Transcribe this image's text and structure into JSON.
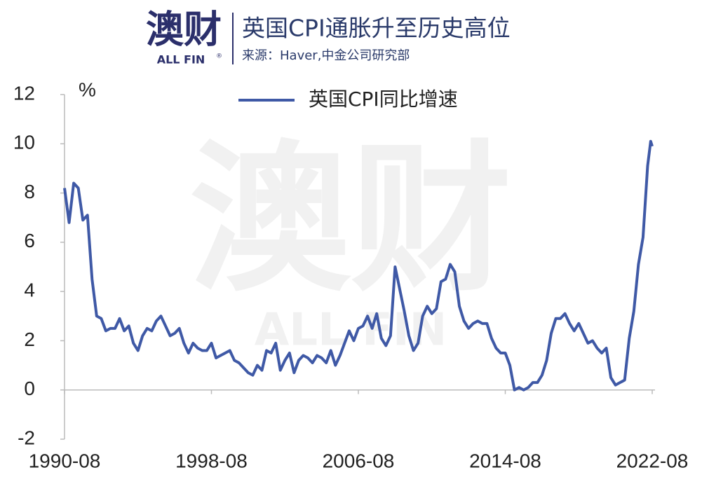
{
  "header": {
    "logo": "澳财",
    "logo_sub": "ALL FIN",
    "logo_mark": "®",
    "title": "英国CPI通胀升至历史高位",
    "source": "来源：Haver,中金公司研究部"
  },
  "watermark": {
    "main": "澳财",
    "sub": "ALL FIN"
  },
  "chart_data": {
    "type": "line",
    "y_unit": "%",
    "x": [
      "1990-08",
      "1990-11",
      "1991-02",
      "1991-05",
      "1991-08",
      "1991-11",
      "1992-02",
      "1992-05",
      "1992-08",
      "1992-11",
      "1993-02",
      "1993-05",
      "1993-08",
      "1993-11",
      "1994-02",
      "1994-05",
      "1994-08",
      "1994-11",
      "1995-02",
      "1995-05",
      "1995-08",
      "1995-11",
      "1996-02",
      "1996-05",
      "1996-08",
      "1996-11",
      "1997-02",
      "1997-05",
      "1997-08",
      "1997-11",
      "1998-02",
      "1998-05",
      "1998-08",
      "1998-11",
      "1999-02",
      "1999-05",
      "1999-08",
      "1999-11",
      "2000-02",
      "2000-05",
      "2000-08",
      "2000-11",
      "2001-02",
      "2001-05",
      "2001-08",
      "2001-11",
      "2002-02",
      "2002-05",
      "2002-08",
      "2002-11",
      "2003-02",
      "2003-05",
      "2003-08",
      "2003-11",
      "2004-02",
      "2004-05",
      "2004-08",
      "2004-11",
      "2005-02",
      "2005-05",
      "2005-08",
      "2005-11",
      "2006-02",
      "2006-05",
      "2006-08",
      "2006-11",
      "2007-02",
      "2007-05",
      "2007-08",
      "2007-11",
      "2008-02",
      "2008-05",
      "2008-08",
      "2008-11",
      "2009-02",
      "2009-05",
      "2009-08",
      "2009-11",
      "2010-02",
      "2010-05",
      "2010-08",
      "2010-11",
      "2011-02",
      "2011-05",
      "2011-08",
      "2011-11",
      "2012-02",
      "2012-05",
      "2012-08",
      "2012-11",
      "2013-02",
      "2013-05",
      "2013-08",
      "2013-11",
      "2014-02",
      "2014-05",
      "2014-08",
      "2014-11",
      "2015-02",
      "2015-05",
      "2015-08",
      "2015-11",
      "2016-02",
      "2016-05",
      "2016-08",
      "2016-11",
      "2017-02",
      "2017-05",
      "2017-08",
      "2017-11",
      "2018-02",
      "2018-05",
      "2018-08",
      "2018-11",
      "2019-02",
      "2019-05",
      "2019-08",
      "2019-11",
      "2020-02",
      "2020-05",
      "2020-08",
      "2020-11",
      "2021-02",
      "2021-05",
      "2021-08",
      "2021-11",
      "2022-02",
      "2022-05",
      "2022-07",
      "2022-08"
    ],
    "series": [
      {
        "name": "英国CPI同比增速",
        "color": "#3f59a6",
        "values": [
          8.2,
          6.8,
          8.4,
          8.2,
          6.9,
          7.1,
          4.5,
          3.0,
          2.9,
          2.4,
          2.5,
          2.5,
          2.9,
          2.4,
          2.6,
          1.9,
          1.6,
          2.2,
          2.5,
          2.4,
          2.8,
          3.0,
          2.6,
          2.2,
          2.3,
          2.5,
          1.9,
          1.5,
          1.9,
          1.7,
          1.6,
          1.6,
          1.9,
          1.3,
          1.4,
          1.5,
          1.6,
          1.2,
          1.1,
          0.9,
          0.7,
          0.6,
          1.0,
          0.8,
          1.6,
          1.5,
          1.9,
          0.8,
          1.2,
          1.5,
          0.7,
          1.2,
          1.4,
          1.3,
          1.1,
          1.4,
          1.3,
          1.1,
          1.6,
          1.0,
          1.4,
          1.9,
          2.4,
          2.0,
          2.5,
          2.6,
          3.0,
          2.5,
          3.1,
          2.1,
          1.8,
          2.2,
          5.0,
          4.1,
          3.2,
          2.2,
          1.6,
          1.9,
          3.0,
          3.4,
          3.1,
          3.3,
          4.4,
          4.5,
          5.1,
          4.8,
          3.4,
          2.8,
          2.5,
          2.7,
          2.8,
          2.7,
          2.7,
          2.1,
          1.7,
          1.5,
          1.5,
          1.0,
          0.0,
          0.1,
          0.0,
          0.1,
          0.3,
          0.3,
          0.6,
          1.2,
          2.3,
          2.9,
          2.9,
          3.1,
          2.7,
          2.4,
          2.7,
          2.3,
          1.9,
          2.0,
          1.7,
          1.5,
          1.7,
          0.5,
          0.2,
          0.3,
          0.4,
          2.1,
          3.2,
          5.1,
          6.2,
          9.1,
          10.1,
          9.9
        ]
      }
    ],
    "xlim": [
      "1990-08",
      "2022-08"
    ],
    "xticks": [
      "1990-08",
      "1998-08",
      "2006-08",
      "2014-08",
      "2022-08"
    ],
    "ylim": [
      -2,
      12
    ],
    "yticks": [
      -2,
      0,
      2,
      4,
      6,
      8,
      10,
      12
    ],
    "legend": "top"
  }
}
